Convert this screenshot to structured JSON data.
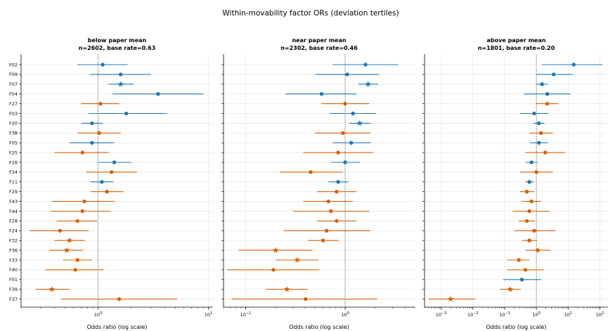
{
  "suptitle": "Within-movability factor ORs (deviation tertiles)",
  "colors": {
    "blue": "#1f77b4",
    "orange": "#d95f02",
    "grid": "#e6e6e6",
    "refline": "#555555"
  },
  "chart_data": {
    "type": "forest",
    "scale": "log",
    "categories": [
      "F02",
      "F09",
      "F07",
      "F04",
      "F27",
      "F03",
      "F20",
      "F38",
      "F05",
      "F25",
      "F16",
      "F34",
      "F11",
      "F29",
      "F43",
      "F44",
      "F28",
      "F24",
      "F32",
      "F36",
      "F33",
      "F40",
      "F01",
      "F39",
      "F37"
    ],
    "panels": [
      {
        "title": "below paper mean",
        "subtitle": "n=2602, base rate=0.63",
        "xlabel": "Odds ratio (log scale)",
        "xlim": [
          0.2,
          11
        ],
        "xticks": [
          {
            "v": 1,
            "base": "10",
            "exp": "0"
          },
          {
            "v": 10,
            "base": "10",
            "exp": "1"
          }
        ],
        "points": [
          {
            "f": "F02",
            "or": 1.1,
            "lo": 0.65,
            "hi": 1.85,
            "c": "blue",
            "m": "o"
          },
          {
            "f": "F09",
            "or": 1.6,
            "lo": 0.85,
            "hi": 3.0,
            "c": "blue",
            "m": "o"
          },
          {
            "f": "F07",
            "or": 1.6,
            "lo": 1.25,
            "hi": 2.1,
            "c": "blue",
            "m": "*"
          },
          {
            "f": "F04",
            "or": 3.5,
            "lo": 1.35,
            "hi": 9.0,
            "c": "blue",
            "m": "o"
          },
          {
            "f": "F27",
            "or": 1.05,
            "lo": 0.7,
            "hi": 1.55,
            "c": "orange",
            "m": "o"
          },
          {
            "f": "F03",
            "or": 1.8,
            "lo": 0.82,
            "hi": 4.2,
            "c": "blue",
            "m": "o"
          },
          {
            "f": "F20",
            "or": 0.88,
            "lo": 0.7,
            "hi": 1.1,
            "c": "blue",
            "m": "o"
          },
          {
            "f": "F38",
            "or": 1.02,
            "lo": 0.65,
            "hi": 1.6,
            "c": "orange",
            "m": "o"
          },
          {
            "f": "F05",
            "or": 0.88,
            "lo": 0.55,
            "hi": 1.4,
            "c": "blue",
            "m": "o"
          },
          {
            "f": "F25",
            "or": 0.72,
            "lo": 0.4,
            "hi": 1.25,
            "c": "orange",
            "m": "o"
          },
          {
            "f": "F16",
            "or": 1.4,
            "lo": 1.0,
            "hi": 2.0,
            "c": "blue",
            "m": "o"
          },
          {
            "f": "F34",
            "or": 1.32,
            "lo": 0.78,
            "hi": 2.25,
            "c": "orange",
            "m": "o"
          },
          {
            "f": "F11",
            "or": 1.08,
            "lo": 0.85,
            "hi": 1.38,
            "c": "blue",
            "m": "o"
          },
          {
            "f": "F29",
            "or": 1.2,
            "lo": 0.85,
            "hi": 1.7,
            "c": "orange",
            "m": "o"
          },
          {
            "f": "F43",
            "or": 0.75,
            "lo": 0.38,
            "hi": 1.4,
            "c": "orange",
            "m": "o"
          },
          {
            "f": "F44",
            "or": 0.72,
            "lo": 0.37,
            "hi": 1.3,
            "c": "orange",
            "m": "o"
          },
          {
            "f": "F28",
            "or": 0.65,
            "lo": 0.42,
            "hi": 0.98,
            "c": "orange",
            "m": "o"
          },
          {
            "f": "F24",
            "or": 0.45,
            "lo": 0.24,
            "hi": 0.82,
            "c": "orange",
            "m": "o"
          },
          {
            "f": "F32",
            "or": 0.55,
            "lo": 0.4,
            "hi": 0.76,
            "c": "orange",
            "m": "*"
          },
          {
            "f": "F36",
            "or": 0.52,
            "lo": 0.36,
            "hi": 0.73,
            "c": "orange",
            "m": "*"
          },
          {
            "f": "F33",
            "or": 0.65,
            "lo": 0.48,
            "hi": 0.88,
            "c": "orange",
            "m": "o"
          },
          {
            "f": "F40",
            "or": 0.62,
            "lo": 0.33,
            "hi": 1.12,
            "c": "orange",
            "m": "o"
          },
          {
            "f": "F39",
            "or": 0.38,
            "lo": 0.27,
            "hi": 0.55,
            "c": "orange",
            "m": "*"
          },
          {
            "f": "F37",
            "or": 1.55,
            "lo": 0.46,
            "hi": 5.2,
            "c": "orange",
            "m": "o"
          }
        ]
      },
      {
        "title": "near paper mean",
        "subtitle": "n=2302, base rate=0.46",
        "xlabel": "Odds ratio (log scale)",
        "xlim": [
          0.06,
          5
        ],
        "xticks": [
          {
            "v": 0.1,
            "base": "10",
            "exp": "−1"
          },
          {
            "v": 1,
            "base": "10",
            "exp": "0"
          }
        ],
        "points": [
          {
            "f": "F02",
            "or": 1.6,
            "lo": 0.75,
            "hi": 3.4,
            "c": "blue",
            "m": "o"
          },
          {
            "f": "F09",
            "or": 1.05,
            "lo": 0.5,
            "hi": 2.2,
            "c": "blue",
            "m": "o"
          },
          {
            "f": "F07",
            "or": 1.7,
            "lo": 1.35,
            "hi": 2.15,
            "c": "blue",
            "m": "*"
          },
          {
            "f": "F04",
            "or": 0.58,
            "lo": 0.25,
            "hi": 1.3,
            "c": "blue",
            "m": "o"
          },
          {
            "f": "F27",
            "or": 1.0,
            "lo": 0.58,
            "hi": 1.75,
            "c": "orange",
            "m": "o"
          },
          {
            "f": "F03",
            "or": 1.2,
            "lo": 0.7,
            "hi": 2.05,
            "c": "blue",
            "m": "o"
          },
          {
            "f": "F20",
            "or": 1.4,
            "lo": 1.1,
            "hi": 1.8,
            "c": "blue",
            "m": "*"
          },
          {
            "f": "F38",
            "or": 0.95,
            "lo": 0.5,
            "hi": 1.8,
            "c": "orange",
            "m": "o"
          },
          {
            "f": "F05",
            "or": 1.15,
            "lo": 0.75,
            "hi": 1.8,
            "c": "blue",
            "m": "o"
          },
          {
            "f": "F25",
            "or": 0.85,
            "lo": 0.38,
            "hi": 1.9,
            "c": "orange",
            "m": "o"
          },
          {
            "f": "F16",
            "or": 1.0,
            "lo": 0.72,
            "hi": 1.42,
            "c": "blue",
            "m": "o"
          },
          {
            "f": "F34",
            "or": 0.45,
            "lo": 0.22,
            "hi": 0.95,
            "c": "orange",
            "m": "o"
          },
          {
            "f": "F11",
            "or": 0.85,
            "lo": 0.68,
            "hi": 1.08,
            "c": "blue",
            "m": "o"
          },
          {
            "f": "F29",
            "or": 0.82,
            "lo": 0.52,
            "hi": 1.3,
            "c": "orange",
            "m": "o"
          },
          {
            "f": "F43",
            "or": 0.68,
            "lo": 0.38,
            "hi": 1.2,
            "c": "orange",
            "m": "o"
          },
          {
            "f": "F44",
            "or": 0.72,
            "lo": 0.3,
            "hi": 1.75,
            "c": "orange",
            "m": "o"
          },
          {
            "f": "F28",
            "or": 0.82,
            "lo": 0.52,
            "hi": 1.3,
            "c": "orange",
            "m": "o"
          },
          {
            "f": "F24",
            "or": 0.65,
            "lo": 0.24,
            "hi": 1.78,
            "c": "orange",
            "m": "o"
          },
          {
            "f": "F32",
            "or": 0.6,
            "lo": 0.42,
            "hi": 0.86,
            "c": "orange",
            "m": "o"
          },
          {
            "f": "F36",
            "or": 0.2,
            "lo": 0.085,
            "hi": 0.47,
            "c": "orange",
            "m": "*"
          },
          {
            "f": "F33",
            "or": 0.33,
            "lo": 0.2,
            "hi": 0.54,
            "c": "orange",
            "m": "*"
          },
          {
            "f": "F40",
            "or": 0.19,
            "lo": 0.065,
            "hi": 0.55,
            "c": "orange",
            "m": "o"
          },
          {
            "f": "F39",
            "or": 0.26,
            "lo": 0.16,
            "hi": 0.42,
            "c": "orange",
            "m": "*"
          },
          {
            "f": "F37",
            "or": 0.4,
            "lo": 0.072,
            "hi": 2.1,
            "c": "orange",
            "m": "o"
          }
        ]
      },
      {
        "title": "above paper mean",
        "subtitle": "n=1801, base rate=0.20",
        "xlabel": "Odds ratio (log scale)",
        "xlim": [
          0.0003,
          180
        ],
        "xticks": [
          {
            "v": 0.001,
            "base": "10",
            "exp": "−3"
          },
          {
            "v": 0.01,
            "base": "10",
            "exp": "−2"
          },
          {
            "v": 0.1,
            "base": "10",
            "exp": "−1"
          },
          {
            "v": 1,
            "base": "10",
            "exp": "0"
          },
          {
            "v": 10,
            "base": "10",
            "exp": "1"
          },
          {
            "v": 100,
            "base": "10",
            "exp": "2"
          }
        ],
        "points": [
          {
            "f": "F02",
            "or": 15.0,
            "lo": 1.5,
            "hi": 120.0,
            "c": "blue",
            "m": "o"
          },
          {
            "f": "F09",
            "or": 3.5,
            "lo": 1.0,
            "hi": 14.0,
            "c": "blue",
            "m": "o"
          },
          {
            "f": "F07",
            "or": 1.5,
            "lo": 0.95,
            "hi": 2.3,
            "c": "blue",
            "m": "o"
          },
          {
            "f": "F04",
            "or": 2.2,
            "lo": 0.4,
            "hi": 12.0,
            "c": "blue",
            "m": "o"
          },
          {
            "f": "F27",
            "or": 2.2,
            "lo": 0.95,
            "hi": 5.0,
            "c": "orange",
            "m": "o"
          },
          {
            "f": "F03",
            "or": 0.85,
            "lo": 0.3,
            "hi": 2.4,
            "c": "blue",
            "m": "o"
          },
          {
            "f": "F20",
            "or": 1.2,
            "lo": 0.8,
            "hi": 1.8,
            "c": "blue",
            "m": "o"
          },
          {
            "f": "F38",
            "or": 1.4,
            "lo": 0.6,
            "hi": 3.3,
            "c": "orange",
            "m": "o"
          },
          {
            "f": "F05",
            "or": 1.2,
            "lo": 0.62,
            "hi": 2.3,
            "c": "blue",
            "m": "o"
          },
          {
            "f": "F25",
            "or": 1.9,
            "lo": 0.45,
            "hi": 8.0,
            "c": "orange",
            "m": "o"
          },
          {
            "f": "F16",
            "or": 0.7,
            "lo": 0.45,
            "hi": 1.1,
            "c": "blue",
            "m": "o"
          },
          {
            "f": "F34",
            "or": 1.0,
            "lo": 0.3,
            "hi": 3.3,
            "c": "orange",
            "m": "o"
          },
          {
            "f": "F11",
            "or": 0.6,
            "lo": 0.45,
            "hi": 0.85,
            "c": "blue",
            "m": "o"
          },
          {
            "f": "F29",
            "or": 0.5,
            "lo": 0.3,
            "hi": 0.85,
            "c": "orange",
            "m": "o"
          },
          {
            "f": "F43",
            "or": 0.7,
            "lo": 0.35,
            "hi": 1.4,
            "c": "orange",
            "m": "o"
          },
          {
            "f": "F44",
            "or": 0.6,
            "lo": 0.18,
            "hi": 2.6,
            "c": "orange",
            "m": "o"
          },
          {
            "f": "F28",
            "or": 0.5,
            "lo": 0.28,
            "hi": 0.9,
            "c": "orange",
            "m": "o"
          },
          {
            "f": "F24",
            "or": 0.85,
            "lo": 0.2,
            "hi": 4.0,
            "c": "orange",
            "m": "o"
          },
          {
            "f": "F32",
            "or": 0.6,
            "lo": 0.35,
            "hi": 1.05,
            "c": "orange",
            "m": "o"
          },
          {
            "f": "F36",
            "or": 1.1,
            "lo": 0.45,
            "hi": 2.8,
            "c": "orange",
            "m": "o"
          },
          {
            "f": "F33",
            "or": 0.28,
            "lo": 0.12,
            "hi": 0.6,
            "c": "orange",
            "m": "o"
          },
          {
            "f": "F40",
            "or": 0.45,
            "lo": 0.12,
            "hi": 1.7,
            "c": "orange",
            "m": "o"
          },
          {
            "f": "F01",
            "or": 0.35,
            "lo": 0.09,
            "hi": 1.4,
            "c": "blue",
            "m": "o"
          },
          {
            "f": "F39",
            "or": 0.15,
            "lo": 0.07,
            "hi": 0.32,
            "c": "orange",
            "m": "*"
          },
          {
            "f": "F37",
            "or": 0.002,
            "lo": 0.0004,
            "hi": 0.012,
            "c": "orange",
            "m": "*"
          }
        ]
      }
    ]
  }
}
